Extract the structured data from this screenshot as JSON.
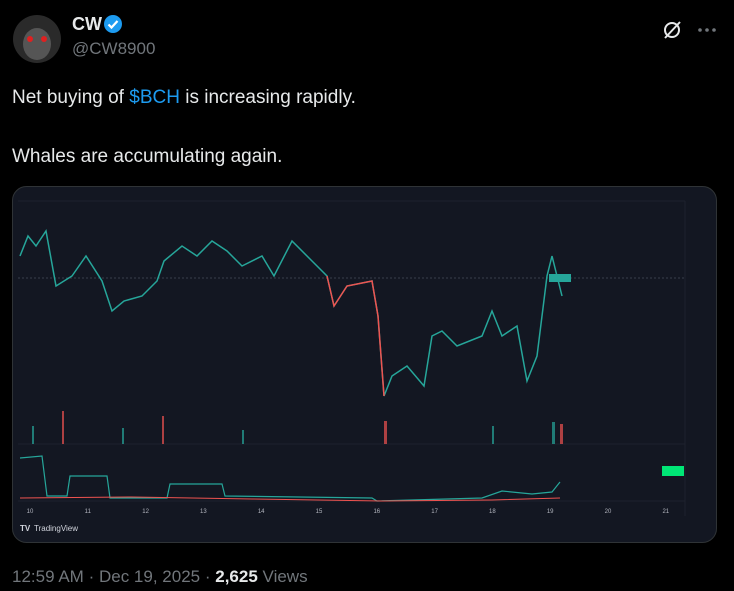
{
  "author": {
    "name": "CW",
    "handle": "@CW8900"
  },
  "post": {
    "line1": {
      "before": "Net buying of ",
      "cashtag": "$BCH",
      "after": " is increasing rapidly."
    },
    "line2": "Whales are accumulating again."
  },
  "embedded_chart": {
    "x_labels": [
      "10",
      "11",
      "12",
      "13",
      "14",
      "15",
      "16",
      "17",
      "18",
      "19",
      "20",
      "21"
    ],
    "brand": "TradingView"
  },
  "meta": {
    "time": "12:59 AM",
    "separator": "·",
    "date": "Dec 19, 2025",
    "views": "2,625",
    "views_label": "Views"
  }
}
